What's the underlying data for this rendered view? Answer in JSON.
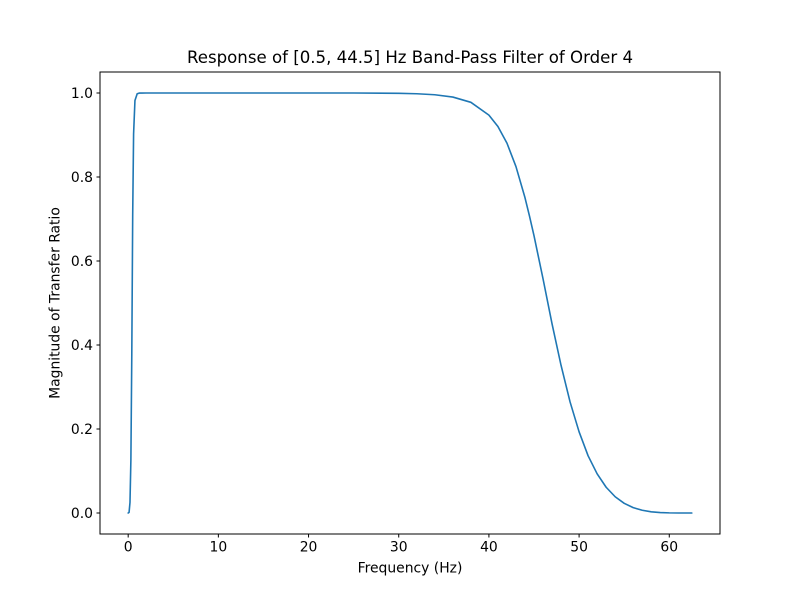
{
  "figure": {
    "background_color": "#ffffff",
    "text_color": "#000000"
  },
  "chart_data": {
    "type": "line",
    "title": "Response of [0.5, 44.5] Hz Band-Pass Filter of Order 4",
    "xlabel": "Frequency (Hz)",
    "ylabel": "Magnitude of Transfer Ratio",
    "xlim": [
      -3.125,
      65.625
    ],
    "ylim": [
      -0.05,
      1.05
    ],
    "xtick_values": [
      0,
      10,
      20,
      30,
      40,
      50,
      60
    ],
    "xtick_labels": [
      "0",
      "10",
      "20",
      "30",
      "40",
      "50",
      "60"
    ],
    "ytick_values": [
      0.0,
      0.2,
      0.4,
      0.6,
      0.8,
      1.0
    ],
    "ytick_labels": [
      "0.0",
      "0.2",
      "0.4",
      "0.6",
      "0.8",
      "1.0"
    ],
    "grid": false,
    "legend_position": "none",
    "series": [
      {
        "name": "band-pass-filter-magnitude-response",
        "color": "#1f77b4",
        "line_width": 1.6,
        "x": [
          0,
          0.1,
          0.2,
          0.3,
          0.4,
          0.5,
          0.6,
          0.75,
          1,
          1.25,
          1.5,
          2,
          3,
          5,
          10,
          15,
          20,
          25,
          30,
          32,
          34,
          36,
          38,
          40,
          41,
          42,
          43,
          44,
          44.5,
          45,
          46,
          47,
          48,
          49,
          50,
          51,
          52,
          53,
          54,
          55,
          56,
          57,
          58,
          59,
          60,
          61,
          62,
          62.5
        ],
        "y": [
          0,
          0.0016,
          0.0251,
          0.1266,
          0.3761,
          0.7071,
          0.9025,
          0.9822,
          0.9983,
          0.9998,
          0.9999,
          1.0,
          1.0,
          1.0,
          1.0,
          1.0,
          1.0,
          1.0,
          0.9992,
          0.9982,
          0.9958,
          0.9903,
          0.9778,
          0.9473,
          0.9202,
          0.8806,
          0.8248,
          0.7508,
          0.7071,
          0.6602,
          0.5577,
          0.4505,
          0.3515,
          0.2644,
          0.1933,
          0.1362,
          0.0933,
          0.0613,
          0.0387,
          0.0231,
          0.0128,
          0.0065,
          0.0029,
          0.0011,
          0.0003,
          0.0,
          0.0,
          0.0
        ]
      }
    ]
  }
}
